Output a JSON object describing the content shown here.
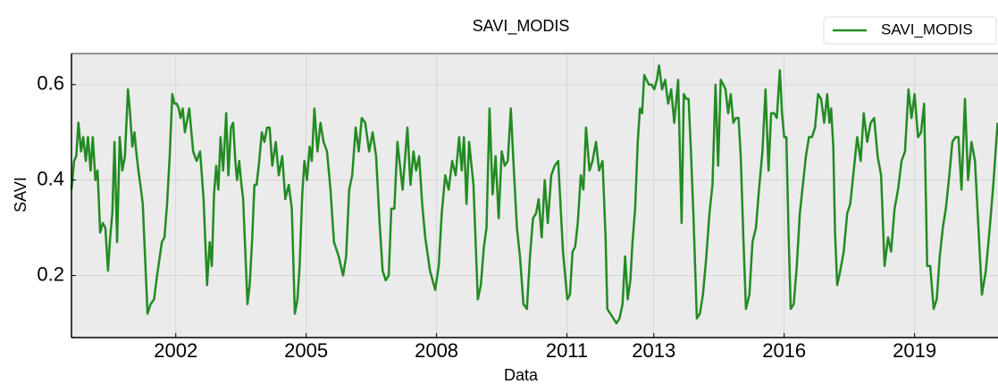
{
  "chart_data": {
    "type": "line",
    "title": "SAVI_MODIS",
    "x_label": "Data",
    "y_label": "SAVI",
    "x": [
      1999.6,
      1999.66,
      1999.71,
      1999.76,
      1999.82,
      1999.87,
      1999.93,
      1999.98,
      2000.04,
      2000.09,
      2000.15,
      2000.2,
      2000.26,
      2000.32,
      2000.38,
      2000.44,
      2000.49,
      2000.54,
      2000.59,
      2000.65,
      2000.71,
      2000.77,
      2000.83,
      2000.9,
      2000.94,
      2001.0,
      2001.05,
      2001.09,
      2001.14,
      2001.2,
      2001.24,
      2001.35,
      2001.42,
      2001.5,
      2001.57,
      2001.68,
      2001.74,
      2001.8,
      2001.86,
      2001.92,
      2001.97,
      2002.02,
      2002.07,
      2002.11,
      2002.16,
      2002.21,
      2002.31,
      2002.4,
      2002.48,
      2002.56,
      2002.64,
      2002.72,
      2002.78,
      2002.83,
      2002.88,
      2002.93,
      2002.98,
      2003.03,
      2003.09,
      2003.16,
      2003.21,
      2003.27,
      2003.32,
      2003.37,
      2003.41,
      2003.46,
      2003.5,
      2003.55,
      2003.65,
      2003.7,
      2003.76,
      2003.81,
      2003.86,
      2003.92,
      2003.98,
      2004.04,
      2004.1,
      2004.16,
      2004.22,
      2004.3,
      2004.37,
      2004.45,
      2004.52,
      2004.6,
      2004.67,
      2004.74,
      2004.8,
      2004.85,
      2004.91,
      2004.96,
      2005.02,
      2005.08,
      2005.13,
      2005.19,
      2005.26,
      2005.33,
      2005.4,
      2005.48,
      2005.56,
      2005.64,
      2005.75,
      2005.85,
      2005.92,
      2005.99,
      2006.06,
      2006.14,
      2006.21,
      2006.28,
      2006.36,
      2006.45,
      2006.53,
      2006.61,
      2006.69,
      2006.76,
      2006.83,
      2006.9,
      2006.96,
      2007.03,
      2007.1,
      2007.22,
      2007.33,
      2007.4,
      2007.47,
      2007.53,
      2007.6,
      2007.67,
      2007.74,
      2007.85,
      2007.97,
      2008.05,
      2008.12,
      2008.2,
      2008.28,
      2008.36,
      2008.44,
      2008.52,
      2008.58,
      2008.63,
      2008.69,
      2008.75,
      2008.85,
      2008.95,
      2009.02,
      2009.09,
      2009.15,
      2009.22,
      2009.29,
      2009.36,
      2009.43,
      2009.5,
      2009.57,
      2009.64,
      2009.71,
      2009.78,
      2009.85,
      2009.92,
      2010.0,
      2010.08,
      2010.15,
      2010.22,
      2010.29,
      2010.35,
      2010.42,
      2010.49,
      2010.56,
      2010.64,
      2010.72,
      2010.8,
      2010.91,
      2011.01,
      2011.07,
      2011.13,
      2011.19,
      2011.25,
      2011.32,
      2011.38,
      2011.44,
      2011.52,
      2011.59,
      2011.67,
      2011.74,
      2011.82,
      2011.89,
      2011.93,
      2012.0,
      2012.07,
      2012.14,
      2012.21,
      2012.28,
      2012.34,
      2012.4,
      2012.46,
      2012.51,
      2012.57,
      2012.63,
      2012.68,
      2012.73,
      2012.78,
      2012.83,
      2012.89,
      2012.95,
      2013.01,
      2013.07,
      2013.12,
      2013.19,
      2013.26,
      2013.33,
      2013.4,
      2013.47,
      2013.56,
      2013.64,
      2013.69,
      2013.75,
      2013.8,
      2013.85,
      2013.91,
      2013.99,
      2014.06,
      2014.13,
      2014.2,
      2014.28,
      2014.35,
      2014.42,
      2014.48,
      2014.54,
      2014.6,
      2014.65,
      2014.71,
      2014.77,
      2014.83,
      2014.89,
      2014.95,
      2015.0,
      2015.06,
      2015.12,
      2015.2,
      2015.27,
      2015.35,
      2015.42,
      2015.5,
      2015.57,
      2015.64,
      2015.7,
      2015.77,
      2015.83,
      2015.9,
      2015.95,
      2016.0,
      2016.05,
      2016.1,
      2016.15,
      2016.22,
      2016.29,
      2016.36,
      2016.43,
      2016.5,
      2016.57,
      2016.64,
      2016.71,
      2016.78,
      2016.85,
      2016.92,
      2016.99,
      2017.04,
      2017.08,
      2017.13,
      2017.17,
      2017.22,
      2017.29,
      2017.37,
      2017.45,
      2017.52,
      2017.6,
      2017.68,
      2017.76,
      2017.83,
      2017.91,
      2017.99,
      2018.07,
      2018.15,
      2018.23,
      2018.31,
      2018.39,
      2018.46,
      2018.54,
      2018.62,
      2018.7,
      2018.78,
      2018.86,
      2018.93,
      2019.0,
      2019.08,
      2019.15,
      2019.22,
      2019.29,
      2019.36,
      2019.44,
      2019.51,
      2019.58,
      2019.65,
      2019.72,
      2019.8,
      2019.87,
      2019.94,
      2020.01,
      2020.08,
      2020.16,
      2020.23,
      2020.31,
      2020.39,
      2020.47,
      2020.55,
      2020.64,
      2020.73,
      2020.82,
      2020.91
    ],
    "series": [
      {
        "name": "SAVI_MODIS",
        "color": "#228b22",
        "values": [
          0.38,
          0.44,
          0.45,
          0.52,
          0.46,
          0.49,
          0.44,
          0.49,
          0.42,
          0.49,
          0.4,
          0.42,
          0.29,
          0.31,
          0.3,
          0.21,
          0.28,
          0.33,
          0.48,
          0.27,
          0.49,
          0.42,
          0.45,
          0.59,
          0.55,
          0.47,
          0.5,
          0.46,
          0.42,
          0.38,
          0.35,
          0.12,
          0.14,
          0.15,
          0.2,
          0.27,
          0.28,
          0.35,
          0.45,
          0.58,
          0.56,
          0.56,
          0.55,
          0.53,
          0.55,
          0.5,
          0.55,
          0.46,
          0.44,
          0.46,
          0.36,
          0.18,
          0.27,
          0.22,
          0.37,
          0.43,
          0.38,
          0.49,
          0.42,
          0.54,
          0.41,
          0.51,
          0.52,
          0.44,
          0.4,
          0.44,
          0.4,
          0.36,
          0.14,
          0.18,
          0.28,
          0.39,
          0.39,
          0.44,
          0.5,
          0.48,
          0.51,
          0.51,
          0.43,
          0.48,
          0.41,
          0.45,
          0.36,
          0.39,
          0.34,
          0.12,
          0.15,
          0.22,
          0.37,
          0.44,
          0.4,
          0.47,
          0.44,
          0.55,
          0.46,
          0.52,
          0.48,
          0.46,
          0.38,
          0.27,
          0.24,
          0.2,
          0.24,
          0.38,
          0.41,
          0.51,
          0.46,
          0.53,
          0.52,
          0.46,
          0.5,
          0.45,
          0.31,
          0.21,
          0.19,
          0.2,
          0.34,
          0.34,
          0.48,
          0.38,
          0.51,
          0.39,
          0.46,
          0.42,
          0.45,
          0.35,
          0.28,
          0.21,
          0.17,
          0.22,
          0.33,
          0.41,
          0.38,
          0.44,
          0.41,
          0.49,
          0.42,
          0.49,
          0.35,
          0.48,
          0.39,
          0.15,
          0.18,
          0.26,
          0.3,
          0.55,
          0.37,
          0.45,
          0.32,
          0.46,
          0.43,
          0.44,
          0.55,
          0.42,
          0.3,
          0.24,
          0.14,
          0.13,
          0.24,
          0.32,
          0.33,
          0.36,
          0.28,
          0.4,
          0.31,
          0.41,
          0.43,
          0.44,
          0.25,
          0.15,
          0.16,
          0.25,
          0.26,
          0.31,
          0.41,
          0.38,
          0.51,
          0.42,
          0.44,
          0.48,
          0.42,
          0.44,
          0.28,
          0.13,
          0.12,
          0.11,
          0.1,
          0.11,
          0.14,
          0.24,
          0.15,
          0.19,
          0.27,
          0.34,
          0.48,
          0.55,
          0.54,
          0.62,
          0.61,
          0.6,
          0.6,
          0.59,
          0.61,
          0.64,
          0.59,
          0.61,
          0.56,
          0.59,
          0.52,
          0.61,
          0.31,
          0.58,
          0.57,
          0.57,
          0.47,
          0.33,
          0.11,
          0.12,
          0.16,
          0.23,
          0.33,
          0.39,
          0.6,
          0.43,
          0.61,
          0.6,
          0.59,
          0.54,
          0.58,
          0.52,
          0.53,
          0.53,
          0.45,
          0.28,
          0.13,
          0.16,
          0.27,
          0.3,
          0.38,
          0.46,
          0.59,
          0.42,
          0.54,
          0.54,
          0.53,
          0.63,
          0.54,
          0.49,
          0.49,
          0.29,
          0.13,
          0.14,
          0.22,
          0.33,
          0.39,
          0.45,
          0.49,
          0.49,
          0.51,
          0.58,
          0.57,
          0.52,
          0.58,
          0.52,
          0.55,
          0.47,
          0.29,
          0.18,
          0.21,
          0.25,
          0.33,
          0.35,
          0.42,
          0.49,
          0.44,
          0.54,
          0.48,
          0.52,
          0.53,
          0.45,
          0.41,
          0.22,
          0.28,
          0.25,
          0.34,
          0.38,
          0.44,
          0.46,
          0.59,
          0.53,
          0.58,
          0.49,
          0.5,
          0.56,
          0.22,
          0.22,
          0.13,
          0.15,
          0.24,
          0.3,
          0.34,
          0.41,
          0.48,
          0.49,
          0.49,
          0.38,
          0.57,
          0.4,
          0.48,
          0.44,
          0.3,
          0.16,
          0.21,
          0.3,
          0.4,
          0.52
        ]
      }
    ],
    "xlim": [
      1999.6,
      2020.92
    ],
    "xticks": [
      2002,
      2005,
      2008,
      2011,
      2013,
      2016,
      2019
    ],
    "ylim": [
      0.07,
      0.665
    ],
    "yticks": [
      0.2,
      0.4,
      0.6
    ],
    "grid": true,
    "legend": "upper right"
  }
}
